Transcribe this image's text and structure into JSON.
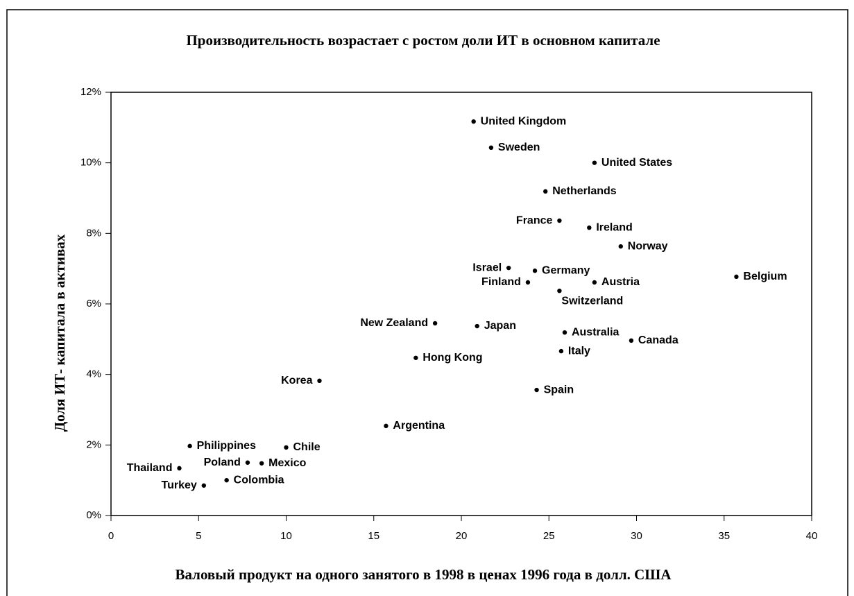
{
  "chart_data": {
    "type": "scatter",
    "title": "Производительность возрастает с ростом доли ИТ в основном капитале",
    "x_label": "Валовый продукт на одного занятого в 1998 в ценах 1996 года в долл. США",
    "y_label": "Доля ИТ- капитала в активах",
    "color": "#000000",
    "labels": [
      "United Kingdom",
      "Sweden",
      "United States",
      "Netherlands",
      "France",
      "Ireland",
      "Norway",
      "Israel",
      "Germany",
      "Finland",
      "Austria",
      "Switzerland",
      "Belgium",
      "New Zealand",
      "Japan",
      "Australia",
      "Canada",
      "Italy",
      "Hong Kong",
      "Korea",
      "Spain",
      "Argentina",
      "Philippines",
      "Chile",
      "Poland",
      "Mexico",
      "Thailand",
      "Colombia",
      "Turkey"
    ],
    "x": [
      20.7,
      21.7,
      27.6,
      24.8,
      25.6,
      27.3,
      29.1,
      22.7,
      24.2,
      23.8,
      27.6,
      25.6,
      35.7,
      18.5,
      20.9,
      25.9,
      29.7,
      25.7,
      17.4,
      11.9,
      24.3,
      15.7,
      4.5,
      10.0,
      7.8,
      8.6,
      3.9,
      6.6,
      5.3
    ],
    "values": [
      11.17,
      10.43,
      10.0,
      9.19,
      8.36,
      8.16,
      7.63,
      7.02,
      6.94,
      6.61,
      6.61,
      6.37,
      6.77,
      5.45,
      5.37,
      5.19,
      4.96,
      4.66,
      4.47,
      3.82,
      3.56,
      2.54,
      1.97,
      1.93,
      1.5,
      1.48,
      1.34,
      1.0,
      0.85
    ],
    "xlim": [
      0,
      40
    ],
    "xticks": [
      0,
      5,
      10,
      15,
      20,
      25,
      30,
      35,
      40
    ],
    "ylim": [
      0,
      12
    ],
    "yticks": [
      {
        "value": 0,
        "label": "0%"
      },
      {
        "value": 2,
        "label": "2%"
      },
      {
        "value": 4,
        "label": "4%"
      },
      {
        "value": 6,
        "label": "6%"
      },
      {
        "value": 8,
        "label": "8%"
      },
      {
        "value": 10,
        "label": "10%"
      },
      {
        "value": 12,
        "label": "12%"
      }
    ]
  }
}
